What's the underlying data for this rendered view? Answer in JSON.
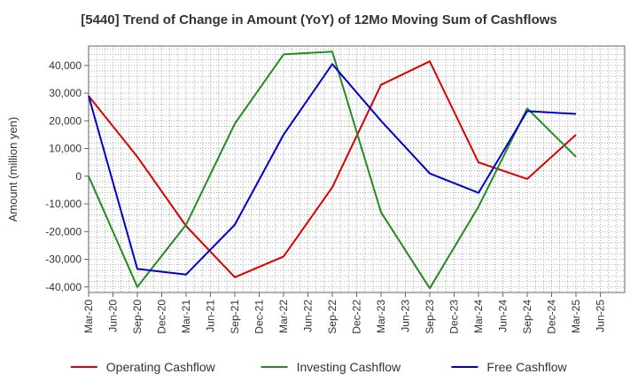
{
  "chart_data": {
    "type": "line",
    "title": "[5440]  Trend of Change in Amount (YoY) of 12Mo Moving Sum of Cashflows",
    "xlabel": "",
    "ylabel": "Amount (million yen)",
    "ylim": [
      -42000,
      47000
    ],
    "yticks": [
      -40000,
      -30000,
      -20000,
      -10000,
      0,
      10000,
      20000,
      30000,
      40000
    ],
    "ytick_labels": [
      "-40,000",
      "-30,000",
      "-20,000",
      "-10,000",
      "0",
      "10,000",
      "20,000",
      "30,000",
      "40,000"
    ],
    "x_tick_labels": [
      "Mar-20",
      "Jun-20",
      "Sep-20",
      "Dec-20",
      "Mar-21",
      "Jun-21",
      "Sep-21",
      "Dec-21",
      "Mar-22",
      "Jun-22",
      "Sep-22",
      "Dec-22",
      "Mar-23",
      "Jun-23",
      "Sep-23",
      "Dec-23",
      "Mar-24",
      "Jun-24",
      "Sep-24",
      "Dec-24",
      "Mar-25",
      "Jun-25"
    ],
    "grid": true,
    "legend_position": "bottom",
    "series": [
      {
        "name": "Operating Cashflow",
        "color": "#dd0000",
        "x": [
          "Mar-20",
          "Sep-20",
          "Mar-21",
          "Sep-21",
          "Mar-22",
          "Sep-22",
          "Mar-23",
          "Sep-23",
          "Mar-24",
          "Sep-24",
          "Mar-25"
        ],
        "values": [
          29000,
          7000,
          -18000,
          -36500,
          -29000,
          -4000,
          33000,
          41500,
          5000,
          -1000,
          15000
        ]
      },
      {
        "name": "Investing Cashflow",
        "color": "#228b22",
        "x": [
          "Mar-20",
          "Sep-20",
          "Mar-21",
          "Sep-21",
          "Mar-22",
          "Sep-22",
          "Mar-23",
          "Sep-23",
          "Mar-24",
          "Sep-24",
          "Mar-25"
        ],
        "values": [
          0,
          -40000,
          -17500,
          19000,
          44000,
          45000,
          -13000,
          -40500,
          -11000,
          24500,
          7000
        ]
      },
      {
        "name": "Free Cashflow",
        "color": "#0000cc",
        "x": [
          "Mar-20",
          "Sep-20",
          "Mar-21",
          "Sep-21",
          "Mar-22",
          "Sep-22",
          "Mar-23",
          "Sep-23",
          "Mar-24",
          "Sep-24",
          "Mar-25"
        ],
        "values": [
          29000,
          -33500,
          -35500,
          -17500,
          15000,
          40500,
          20000,
          1000,
          -6000,
          23500,
          22500
        ]
      }
    ]
  }
}
